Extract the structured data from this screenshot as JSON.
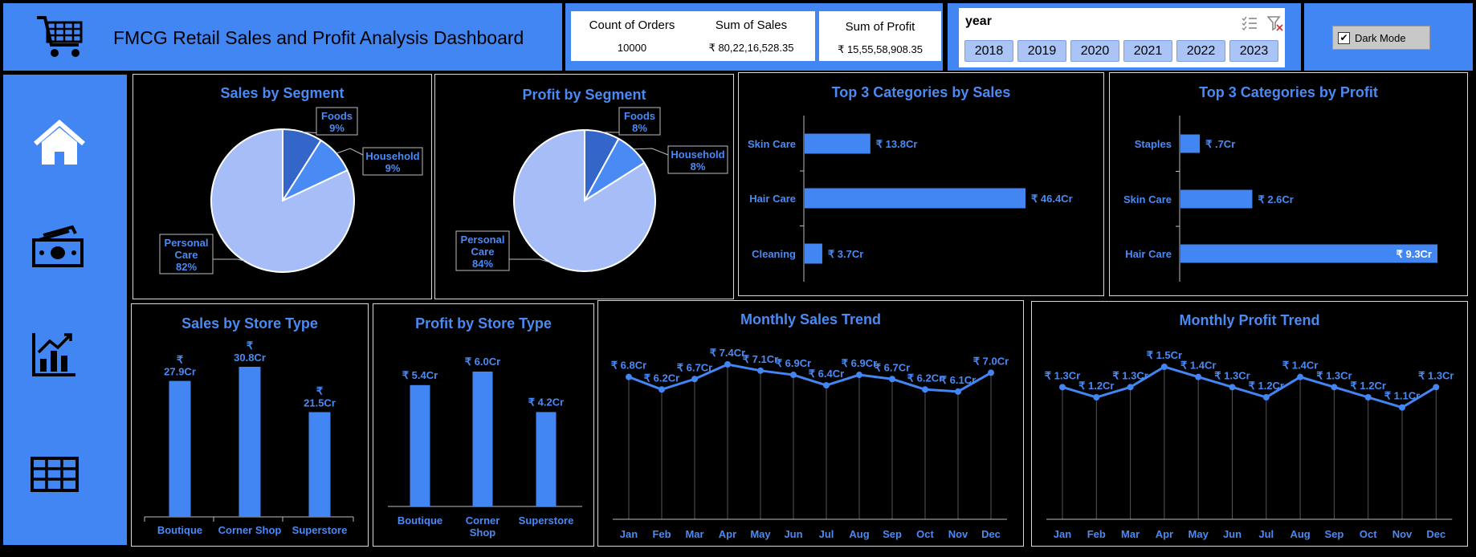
{
  "header": {
    "title": "FMCG Retail Sales and Profit Analysis Dashboard"
  },
  "kpis": [
    {
      "label": "Count of Orders",
      "value": "10000"
    },
    {
      "label": "Sum of Sales",
      "value": "₹ 80,22,16,528.35"
    },
    {
      "label": "Sum of Profit",
      "value": "₹ 15,55,58,908.35"
    }
  ],
  "slicer": {
    "title": "year",
    "years": [
      "2018",
      "2019",
      "2020",
      "2021",
      "2022",
      "2023"
    ]
  },
  "dark_mode": {
    "label": "Dark Mode",
    "checked": true
  },
  "colors": {
    "accent": "#4286f4",
    "bar": "#4286f4",
    "pie_major": "#a6bdf7",
    "pie_foods": "#3466c9",
    "pie_household": "#4a8af4",
    "text_blue": "#4a8af4"
  },
  "sidebar": {
    "icons": [
      "home-icon",
      "money-icon",
      "chart-icon",
      "table-icon"
    ]
  },
  "chart_data": [
    {
      "id": "sales-by-segment",
      "type": "pie",
      "title": "Sales by Segment",
      "slices": [
        {
          "name": "Foods",
          "value": 9
        },
        {
          "name": "Household",
          "value": 9
        },
        {
          "name": "Personal Care",
          "value": 82
        }
      ]
    },
    {
      "id": "profit-by-segment",
      "type": "pie",
      "title": "Profit by Segment",
      "slices": [
        {
          "name": "Foods",
          "value": 8
        },
        {
          "name": "Household",
          "value": 8
        },
        {
          "name": "Personal Care",
          "value": 84
        }
      ]
    },
    {
      "id": "top3-sales",
      "type": "bar",
      "orientation": "horizontal",
      "title": "Top 3 Categories by Sales",
      "categories": [
        "Skin Care",
        "Hair Care",
        "Cleaning"
      ],
      "values": [
        13.8,
        46.4,
        3.7
      ],
      "labels": [
        "₹ 13.8Cr",
        "₹ 46.4Cr",
        "₹ 3.7Cr"
      ],
      "xlim": [
        0,
        55
      ]
    },
    {
      "id": "top3-profit",
      "type": "bar",
      "orientation": "horizontal",
      "title": "Top 3 Categories by Profit",
      "categories": [
        "Staples",
        "Skin Care",
        "Hair Care"
      ],
      "values": [
        0.7,
        2.6,
        9.3
      ],
      "labels": [
        "₹ .7Cr",
        "₹ 2.6Cr",
        "₹ 9.3Cr"
      ],
      "xlim": [
        0,
        10
      ]
    },
    {
      "id": "sales-by-store",
      "type": "bar",
      "title": "Sales by Store Type",
      "categories": [
        "Boutique",
        "Corner Shop",
        "Superstore"
      ],
      "values": [
        27.9,
        30.8,
        21.5
      ],
      "labels": [
        "₹ 27.9Cr",
        "₹ 30.8Cr",
        "₹ 21.5Cr"
      ],
      "ylim": [
        0,
        34
      ]
    },
    {
      "id": "profit-by-store",
      "type": "bar",
      "title": "Profit by Store Type",
      "categories": [
        "Boutique",
        "Corner Shop",
        "Superstore"
      ],
      "values": [
        5.4,
        6.0,
        4.2
      ],
      "labels": [
        "₹ 5.4Cr",
        "₹ 6.0Cr",
        "₹ 4.2Cr"
      ],
      "ylim": [
        0,
        6.6
      ]
    },
    {
      "id": "monthly-sales",
      "type": "line",
      "title": "Monthly Sales Trend",
      "categories": [
        "Jan",
        "Feb",
        "Mar",
        "Apr",
        "May",
        "Jun",
        "Jul",
        "Aug",
        "Sep",
        "Oct",
        "Nov",
        "Dec"
      ],
      "values": [
        6.8,
        6.2,
        6.7,
        7.4,
        7.1,
        6.9,
        6.4,
        6.9,
        6.7,
        6.2,
        6.1,
        7.0
      ],
      "labels": [
        "₹ 6.8Cr",
        "₹ 6.2Cr",
        "₹ 6.7Cr",
        "₹ 7.4Cr",
        "₹ 7.1Cr",
        "₹ 6.9Cr",
        "₹ 6.4Cr",
        "₹ 6.9Cr",
        "₹ 6.7Cr",
        "₹ 6.2Cr",
        "₹ 6.1Cr",
        "₹ 7.0Cr"
      ],
      "ylim": [
        0,
        8.2
      ]
    },
    {
      "id": "monthly-profit",
      "type": "line",
      "title": "Monthly Profit Trend",
      "categories": [
        "Jan",
        "Feb",
        "Mar",
        "Apr",
        "May",
        "Jun",
        "Jul",
        "Aug",
        "Sep",
        "Oct",
        "Nov",
        "Dec"
      ],
      "values": [
        1.3,
        1.2,
        1.3,
        1.5,
        1.4,
        1.3,
        1.2,
        1.4,
        1.3,
        1.2,
        1.1,
        1.3
      ],
      "labels": [
        "₹ 1.3Cr",
        "₹ 1.2Cr",
        "₹ 1.3Cr",
        "₹ 1.5Cr",
        "₹ 1.4Cr",
        "₹ 1.3Cr",
        "₹ 1.2Cr",
        "₹ 1.4Cr",
        "₹ 1.3Cr",
        "₹ 1.2Cr",
        "₹ 1.1Cr",
        "₹ 1.3Cr"
      ],
      "ylim": [
        0,
        1.65
      ]
    }
  ]
}
